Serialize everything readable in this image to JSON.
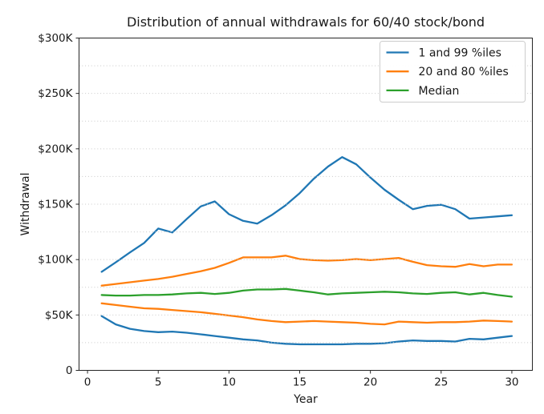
{
  "chart_data": {
    "type": "line",
    "title": "Distribution of annual withdrawals for 60/40 stock/bond",
    "xlabel": "Year",
    "ylabel": "Withdrawal",
    "values_unit": "thousand_usd",
    "x": [
      1,
      2,
      3,
      4,
      5,
      6,
      7,
      8,
      9,
      10,
      11,
      12,
      13,
      14,
      15,
      16,
      17,
      18,
      19,
      20,
      21,
      22,
      23,
      24,
      25,
      26,
      27,
      28,
      29,
      30
    ],
    "xlim": [
      -0.6,
      31.45
    ],
    "ylim_k": [
      0,
      300
    ],
    "x_ticks": [
      0,
      5,
      10,
      15,
      20,
      25,
      30
    ],
    "y_ticks_k": [
      0,
      50,
      100,
      150,
      200,
      250,
      300
    ],
    "y_tick_labels": [
      "0",
      "$50K",
      "$100K",
      "$150K",
      "$200K",
      "$250K",
      "$300K"
    ],
    "grid": {
      "orientation": "horizontal",
      "style": "dotted",
      "interval_k": 25,
      "color": "#c9c9c9",
      "drawn_above_lines": true
    },
    "legend": {
      "position": "upper right",
      "entries": [
        {
          "label": "1 and 99 %iles",
          "color": "#1f77b4"
        },
        {
          "label": "20 and 80 %iles",
          "color": "#ff7f0e"
        },
        {
          "label": "Median",
          "color": "#2ca02c"
        }
      ]
    },
    "series": [
      {
        "name": "99th-percentile",
        "legend_label": "1 and 99 %iles",
        "color": "#1f77b4",
        "values_k": [
          89,
          97.5,
          106.5,
          115,
          128,
          124.5,
          136.5,
          148,
          152.5,
          141,
          135,
          132.5,
          140,
          149,
          160,
          173,
          184,
          192.5,
          186,
          174,
          163,
          154,
          145.5,
          148.5,
          149.5,
          145.5,
          137,
          138,
          139,
          140
        ]
      },
      {
        "name": "80th-percentile",
        "legend_label": "20 and 80 %iles",
        "color": "#ff7f0e",
        "values_k": [
          76.5,
          78,
          79.5,
          81,
          82.5,
          84.5,
          87,
          89.5,
          92.5,
          97,
          102,
          102,
          102,
          103.5,
          100.5,
          99.5,
          99,
          99.5,
          100.5,
          99.5,
          100.5,
          101.5,
          98,
          95,
          94,
          93.5,
          96,
          94,
          95.5,
          95.5
        ]
      },
      {
        "name": "median",
        "legend_label": "Median",
        "color": "#2ca02c",
        "values_k": [
          68,
          67.5,
          67.5,
          68,
          68,
          68.5,
          69.5,
          70,
          69,
          70,
          72,
          73,
          73,
          73.5,
          72,
          70.5,
          68.5,
          69.5,
          70,
          70.5,
          71,
          70.5,
          69.5,
          69,
          70,
          70.5,
          68.5,
          70,
          68,
          66.5
        ]
      },
      {
        "name": "20th-percentile",
        "legend_label": null,
        "color": "#ff7f0e",
        "values_k": [
          60.5,
          59,
          57.5,
          56,
          55.5,
          54.5,
          53.5,
          52.5,
          51,
          49.5,
          48,
          46,
          44.5,
          43.5,
          44,
          44.5,
          44,
          43.5,
          43,
          42,
          41.5,
          44,
          43.5,
          43,
          43.5,
          43.5,
          44,
          45,
          44.5,
          44
        ]
      },
      {
        "name": "1st-percentile",
        "legend_label": null,
        "color": "#1f77b4",
        "values_k": [
          49,
          41.5,
          37.5,
          35.5,
          34.5,
          35,
          34,
          32.5,
          31,
          29.5,
          28,
          27,
          25,
          24,
          23.5,
          23.5,
          23.5,
          23.5,
          24,
          24,
          24.5,
          26,
          27,
          26.5,
          26.5,
          26,
          28.5,
          28,
          29.5,
          31
        ]
      }
    ],
    "style": {
      "line_width": 2.3,
      "spine_color": "#262626",
      "background": "#ffffff"
    }
  }
}
